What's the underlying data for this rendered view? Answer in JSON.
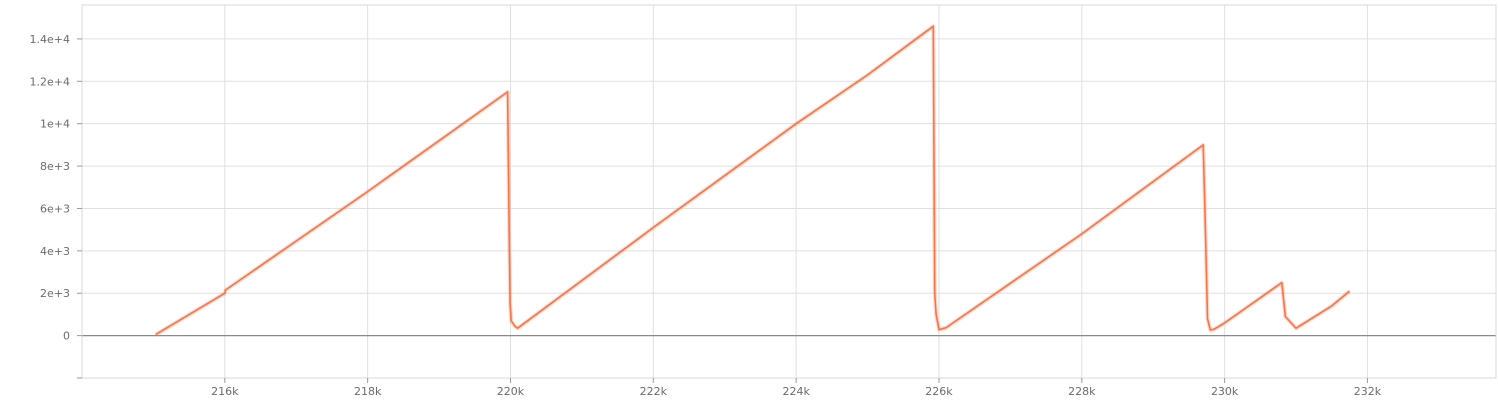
{
  "chart_data": {
    "type": "line",
    "title": "",
    "xlabel": "",
    "ylabel": "",
    "xlim": [
      214000,
      233800
    ],
    "ylim": [
      -2000,
      15600
    ],
    "grid": true,
    "x_ticks": [
      {
        "value": 216000,
        "label": "216k"
      },
      {
        "value": 218000,
        "label": "218k"
      },
      {
        "value": 220000,
        "label": "220k"
      },
      {
        "value": 222000,
        "label": "222k"
      },
      {
        "value": 224000,
        "label": "224k"
      },
      {
        "value": 226000,
        "label": "226k"
      },
      {
        "value": 228000,
        "label": "228k"
      },
      {
        "value": 230000,
        "label": "230k"
      },
      {
        "value": 232000,
        "label": "232k"
      }
    ],
    "y_ticks": [
      {
        "value": 0,
        "label": "0"
      },
      {
        "value": 2000,
        "label": "2e+3"
      },
      {
        "value": 4000,
        "label": "4e+3"
      },
      {
        "value": 6000,
        "label": "6e+3"
      },
      {
        "value": 8000,
        "label": "8e+3"
      },
      {
        "value": 10000,
        "label": "1e+4"
      },
      {
        "value": 12000,
        "label": "1.2e+4"
      },
      {
        "value": 14000,
        "label": "1.4e+4"
      }
    ],
    "series": [
      {
        "color": "#ff7043",
        "x": [
          215030,
          216000,
          216010,
          218000,
          219960,
          219985,
          219995,
          220010,
          220060,
          220100,
          222000,
          224000,
          225000,
          225920,
          225940,
          225960,
          226000,
          226100,
          228000,
          229700,
          229730,
          229760,
          229800,
          229850,
          230000,
          230800,
          230850,
          231000,
          231500,
          231750
        ],
        "y": [
          50,
          2000,
          2150,
          6800,
          11500,
          4000,
          1500,
          700,
          450,
          350,
          5100,
          10000,
          12300,
          14600,
          2000,
          1000,
          280,
          380,
          4800,
          9000,
          5200,
          800,
          270,
          300,
          600,
          2500,
          900,
          350,
          1400,
          2100
        ]
      }
    ]
  }
}
